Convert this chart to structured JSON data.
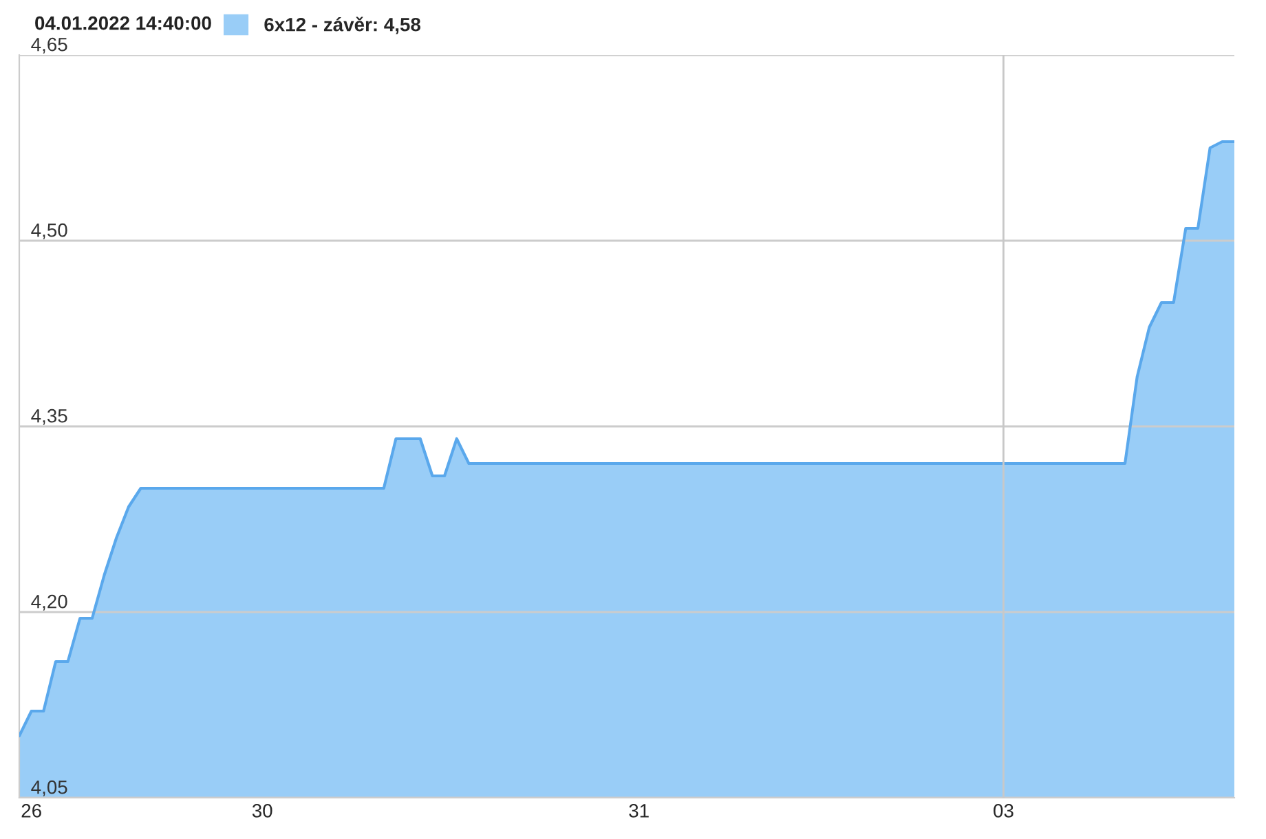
{
  "chart_data": {
    "type": "area",
    "annotations": [
      "04.01.2022 14:40:00"
    ],
    "categories": [
      null,
      "26",
      null,
      null,
      null,
      null,
      null,
      null,
      null,
      null,
      null,
      null,
      null,
      null,
      null,
      null,
      null,
      null,
      null,
      null,
      "30",
      null,
      null,
      null,
      null,
      null,
      null,
      null,
      null,
      null,
      null,
      null,
      null,
      null,
      null,
      null,
      null,
      null,
      null,
      null,
      null,
      null,
      null,
      null,
      null,
      null,
      null,
      null,
      null,
      null,
      null,
      "31",
      null,
      null,
      null,
      null,
      null,
      null,
      null,
      null,
      null,
      null,
      null,
      null,
      null,
      null,
      null,
      null,
      null,
      null,
      null,
      null,
      null,
      null,
      null,
      null,
      null,
      null,
      null,
      null,
      null,
      "03",
      null,
      null,
      null,
      null,
      null,
      null,
      null,
      null,
      null,
      null,
      null,
      null,
      null,
      null,
      null,
      null,
      null,
      null,
      null
    ],
    "series": [
      {
        "name": "6x12 - závěr: 4,58",
        "color": "#99cdf7",
        "values": [
          4.1,
          4.12,
          4.12,
          4.16,
          4.16,
          4.195,
          4.195,
          4.23,
          4.26,
          4.285,
          4.3,
          4.3,
          4.3,
          4.3,
          4.3,
          4.3,
          4.3,
          4.3,
          4.3,
          4.3,
          4.3,
          4.3,
          4.3,
          4.3,
          4.3,
          4.3,
          4.3,
          4.3,
          4.3,
          4.3,
          4.3,
          4.34,
          4.34,
          4.34,
          4.31,
          4.31,
          4.34,
          4.32,
          4.32,
          4.32,
          4.32,
          4.32,
          4.32,
          4.32,
          4.32,
          4.32,
          4.32,
          4.32,
          4.32,
          4.32,
          4.32,
          4.32,
          4.32,
          4.32,
          4.32,
          4.32,
          4.32,
          4.32,
          4.32,
          4.32,
          4.32,
          4.32,
          4.32,
          4.32,
          4.32,
          4.32,
          4.32,
          4.32,
          4.32,
          4.32,
          4.32,
          4.32,
          4.32,
          4.32,
          4.32,
          4.32,
          4.32,
          4.32,
          4.32,
          4.32,
          4.32,
          4.32,
          4.32,
          4.32,
          4.32,
          4.32,
          4.32,
          4.32,
          4.32,
          4.32,
          4.32,
          4.32,
          4.39,
          4.43,
          4.45,
          4.45,
          4.51,
          4.51,
          4.575,
          4.58,
          4.58
        ]
      }
    ],
    "ylim": [
      4.05,
      4.65
    ],
    "yticks": [
      {
        "value": 4.05,
        "label": "4,05"
      },
      {
        "value": 4.2,
        "label": "4,20"
      },
      {
        "value": 4.35,
        "label": "4,35"
      },
      {
        "value": 4.5,
        "label": "4,50"
      },
      {
        "value": 4.65,
        "label": "4,65"
      }
    ],
    "grid": "y",
    "legend": "top left",
    "ref_lines": [
      {
        "axis": "x",
        "value": "03",
        "color": "#c8c8c8"
      }
    ]
  }
}
